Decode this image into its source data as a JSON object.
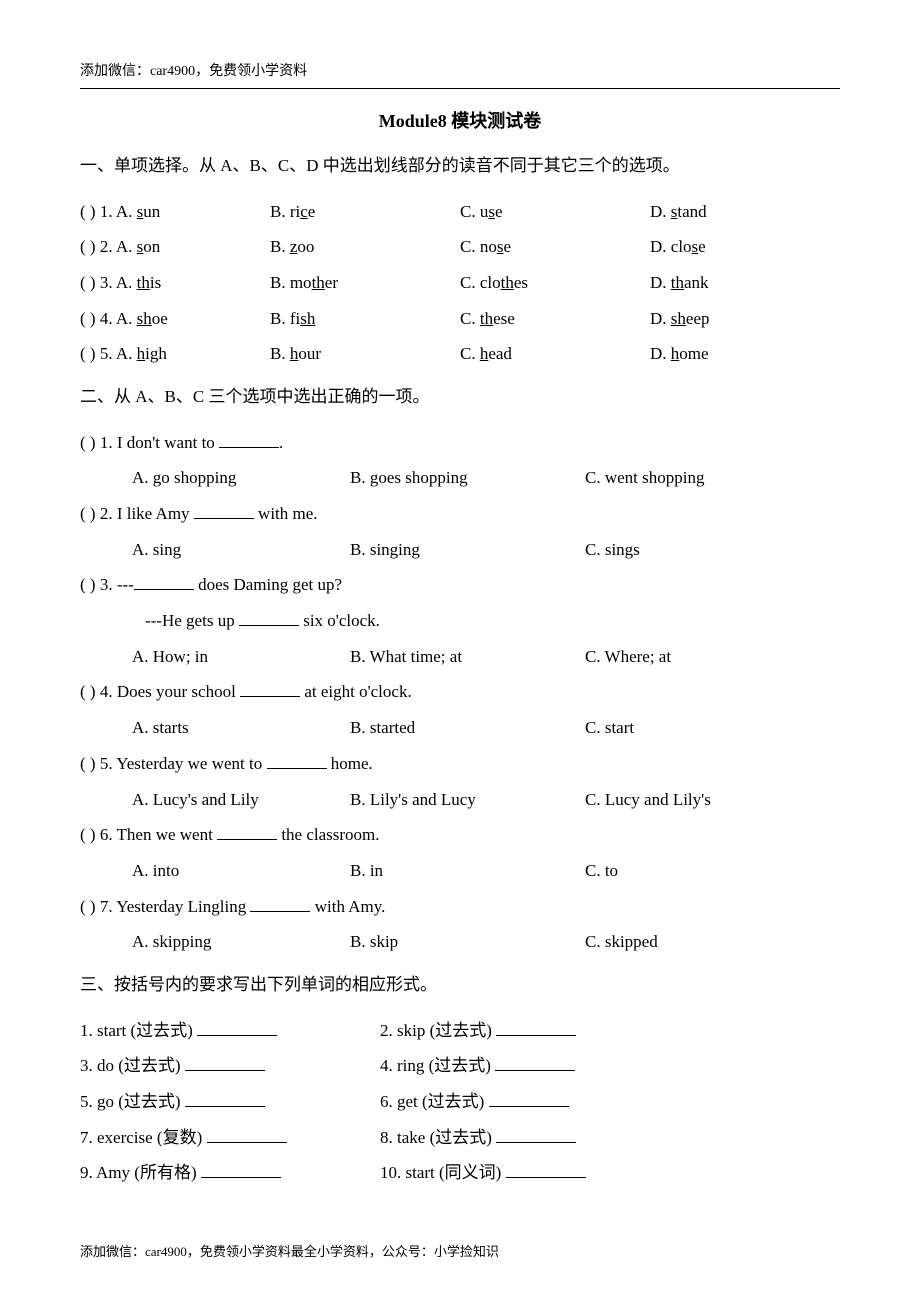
{
  "header_note": "添加微信：car4900，免费领小学资料",
  "footer_note": "添加微信：car4900，免费领小学资料最全小学资料，公众号：小学捡知识",
  "title": "Module8 模块测试卷",
  "section1": {
    "heading": "一、单项选择。从 A、B、C、D 中选出划线部分的读音不同于其它三个的选项。",
    "items": [
      {
        "num": "(    ) 1.",
        "a_pre": "A. ",
        "a_u": "s",
        "a_post": "un",
        "b_pre": "B. ri",
        "b_u": "c",
        "b_post": "e",
        "c_pre": "C. u",
        "c_u": "s",
        "c_post": "e",
        "d_pre": "D. ",
        "d_u": "s",
        "d_post": "tand"
      },
      {
        "num": "(    ) 2.",
        "a_pre": "A. ",
        "a_u": "s",
        "a_post": "on",
        "b_pre": "B. ",
        "b_u": "z",
        "b_post": "oo",
        "c_pre": "C. no",
        "c_u": "s",
        "c_post": "e",
        "d_pre": "D. clo",
        "d_u": "s",
        "d_post": "e"
      },
      {
        "num": "(    ) 3.",
        "a_pre": "A. ",
        "a_u": "th",
        "a_post": "is",
        "b_pre": "B. mo",
        "b_u": "th",
        "b_post": "er",
        "c_pre": "C. clo",
        "c_u": "th",
        "c_post": "es",
        "d_pre": "D. ",
        "d_u": "th",
        "d_post": "ank"
      },
      {
        "num": "(    ) 4.",
        "a_pre": "A. ",
        "a_u": "sh",
        "a_post": "oe",
        "b_pre": "B. fi",
        "b_u": "sh",
        "b_post": "",
        "c_pre": "C. ",
        "c_u": "th",
        "c_post": "ese",
        "d_pre": "D. ",
        "d_u": "sh",
        "d_post": "eep"
      },
      {
        "num": "(    ) 5.",
        "a_pre": "A. ",
        "a_u": "h",
        "a_post": "igh",
        "b_pre": "B. ",
        "b_u": "h",
        "b_post": "our",
        "c_pre": "C. ",
        "c_u": "h",
        "c_post": "ead",
        "d_pre": "D. ",
        "d_u": "h",
        "d_post": "ome"
      }
    ]
  },
  "section2": {
    "heading": "二、从 A、B、C 三个选项中选出正确的一项。",
    "items": [
      {
        "stem_pre": "(    ) 1. I don't want to ",
        "stem_post": ".",
        "opts": [
          "A. go shopping",
          "B. goes shopping",
          "C. went shopping"
        ]
      },
      {
        "stem_pre": "(    ) 2. I like Amy ",
        "stem_post": " with me.",
        "opts": [
          "A. sing",
          "B. singing",
          "C. sings"
        ]
      },
      {
        "stem_pre": "(    ) 3. ---",
        "stem_post": " does Daming get up?",
        "sub_pre": "---He gets up ",
        "sub_post": " six o'clock.",
        "opts": [
          "A. How; in",
          "B. What time; at",
          "C. Where; at"
        ]
      },
      {
        "stem_pre": "(    ) 4. Does your school ",
        "stem_post": " at eight o'clock.",
        "opts": [
          "A. starts",
          "B. started",
          "C. start"
        ]
      },
      {
        "stem_pre": "(    ) 5. Yesterday we went to ",
        "stem_post": " home.",
        "opts": [
          "A. Lucy's and Lily",
          "B. Lily's and Lucy",
          "C. Lucy and Lily's"
        ]
      },
      {
        "stem_pre": "(    ) 6. Then we went ",
        "stem_post": " the classroom.",
        "opts": [
          "A. into",
          "B. in",
          "C. to"
        ]
      },
      {
        "stem_pre": "(    ) 7. Yesterday Lingling ",
        "stem_post": " with Amy.",
        "opts": [
          "A. skipping",
          "B. skip",
          "C. skipped"
        ]
      }
    ]
  },
  "section3": {
    "heading": "三、按括号内的要求写出下列单词的相应形式。",
    "rows": [
      {
        "left": "1. start (过去式) ",
        "right": "2. skip (过去式) "
      },
      {
        "left": "3. do (过去式) ",
        "right": "4. ring (过去式) "
      },
      {
        "left": "5. go (过去式) ",
        "right": "6. get (过去式) "
      },
      {
        "left": "7. exercise (复数) ",
        "right": "8. take (过去式) "
      },
      {
        "left": "9. Amy (所有格) ",
        "right": "10. start (同义词) "
      }
    ]
  }
}
